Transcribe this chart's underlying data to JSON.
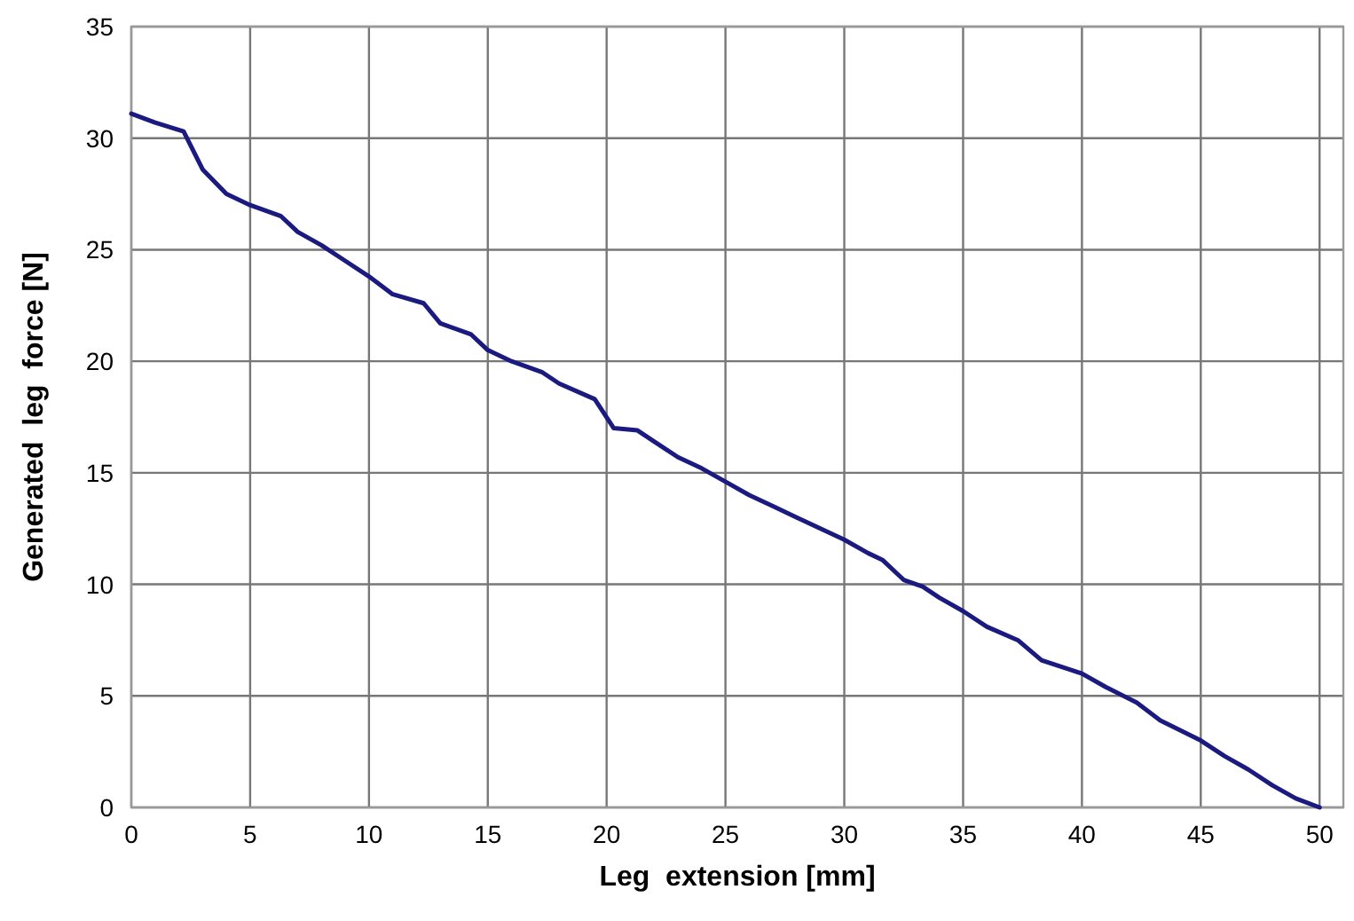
{
  "chart_data": {
    "type": "line",
    "xlabel": "Leg  extension [mm]",
    "ylabel": "Generated  leg  force [N]",
    "xlim": [
      0,
      51
    ],
    "ylim": [
      0,
      35
    ],
    "xticks": [
      0,
      5,
      10,
      15,
      20,
      25,
      30,
      35,
      40,
      45,
      50
    ],
    "yticks": [
      0,
      5,
      10,
      15,
      20,
      25,
      30,
      35
    ],
    "grid": true,
    "series": [
      {
        "color": "#1a1a80",
        "x": [
          0,
          1,
          2.2,
          3,
          4,
          5,
          6.3,
          7,
          8,
          9,
          10,
          11,
          12.3,
          13,
          14.3,
          15,
          16,
          17.3,
          18,
          19.5,
          20.3,
          21.3,
          22,
          23,
          24,
          25,
          26,
          27,
          28,
          29,
          30,
          31,
          31.6,
          32.5,
          33.3,
          34,
          35,
          36,
          37.3,
          38.3,
          40,
          41,
          42.3,
          43.3,
          45,
          46,
          47,
          48,
          49,
          50
        ],
        "values": [
          31.1,
          30.7,
          30.3,
          28.6,
          27.5,
          27,
          26.5,
          25.8,
          25.2,
          24.5,
          23.8,
          23.0,
          22.6,
          21.7,
          21.2,
          20.5,
          20,
          19.5,
          19,
          18.3,
          17,
          16.9,
          16.4,
          15.7,
          15.2,
          14.6,
          14,
          13.5,
          13,
          12.5,
          12,
          11.4,
          11.1,
          10.2,
          9.9,
          9.4,
          8.8,
          8.1,
          7.5,
          6.6,
          6,
          5.4,
          4.7,
          3.9,
          3,
          2.3,
          1.7,
          1,
          0.4,
          0
        ]
      }
    ]
  }
}
